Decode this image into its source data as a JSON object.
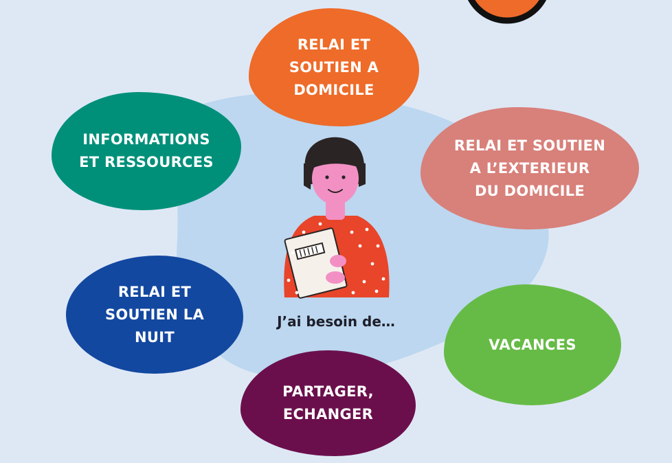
{
  "center_text": "J’ai besoin de…",
  "bubbles": [
    {
      "label": "RELAI ET\nSOUTIEN A\nDOMICILE",
      "color": "#ee6b29"
    },
    {
      "label": "INFORMATIONS\nET RESSOURCES",
      "color": "#00907a"
    },
    {
      "label": "RELAI ET SOUTIEN\nA L’EXTERIEUR\nDU DOMICILE",
      "color": "#d8807a"
    },
    {
      "label": "RELAI ET\nSOUTIEN LA\nNUIT",
      "color": "#1348a0"
    },
    {
      "label": "VACANCES",
      "color": "#66bb46"
    },
    {
      "label": "PARTAGER,\nECHANGER",
      "color": "#6b0f4c"
    }
  ],
  "colors": {
    "background": "#dee8f5",
    "central_area": "#bcd7ef",
    "logo_orange": "#ee6b29"
  },
  "illustration": "woman-holding-papers-icon"
}
